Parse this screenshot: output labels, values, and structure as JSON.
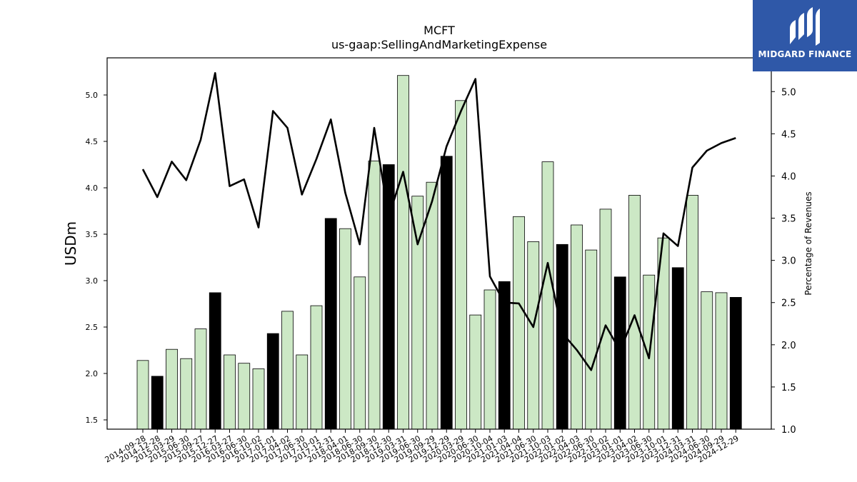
{
  "brand": {
    "name": "MIDGARD FINANCE",
    "logo_icon": "midgard-m-logo-icon",
    "bg_color": "#2f58a8"
  },
  "colors": {
    "bar_fill": "#cce8c5",
    "bar_highlight": "#000000",
    "line": "#000000"
  },
  "chart_data": {
    "type": "bar",
    "title": "MCFT",
    "subtitle": "us-gaap:SellingAndMarketingExpense",
    "ylabel": "USDm",
    "y2label": "Percentage of Revenues",
    "ylim": [
      1.4,
      5.4
    ],
    "y2lim": [
      1.0,
      5.4
    ],
    "yticks": [
      "1.5",
      "2.0",
      "2.5",
      "3.0",
      "3.5",
      "4.0",
      "4.5",
      "5.0"
    ],
    "y2ticks": [
      "1.0",
      "1.5",
      "2.0",
      "2.5",
      "3.0",
      "3.5",
      "4.0",
      "4.5",
      "5.0"
    ],
    "grid": false,
    "categories": [
      "2014-09-28",
      "2014-12-28",
      "2015-03-29",
      "2015-06-30",
      "2015-09-27",
      "2015-12-27",
      "2016-03-27",
      "2016-06-30",
      "2016-10-02",
      "2017-01-01",
      "2017-04-02",
      "2017-06-30",
      "2017-10-01",
      "2017-12-31",
      "2018-04-01",
      "2018-06-30",
      "2018-09-30",
      "2018-12-30",
      "2019-03-31",
      "2019-06-30",
      "2019-09-29",
      "2019-12-29",
      "2020-03-29",
      "2020-06-30",
      "2020-10-04",
      "2021-01-03",
      "2021-04-04",
      "2021-06-30",
      "2021-10-03",
      "2022-01-02",
      "2022-04-03",
      "2022-06-30",
      "2022-10-02",
      "2023-01-01",
      "2023-04-02",
      "2023-06-30",
      "2023-10-01",
      "2023-12-31",
      "2024-03-31",
      "2024-06-30",
      "2024-09-29",
      "2024-12-29"
    ],
    "series": [
      {
        "type": "bar",
        "values": [
          2.14,
          1.97,
          2.26,
          2.16,
          2.48,
          2.87,
          2.2,
          2.11,
          2.05,
          2.43,
          2.67,
          2.2,
          2.73,
          3.67,
          3.56,
          3.04,
          4.29,
          4.25,
          5.21,
          3.91,
          4.06,
          4.34,
          4.94,
          2.63,
          2.9,
          2.99,
          3.69,
          3.42,
          4.28,
          3.39,
          3.6,
          3.33,
          3.77,
          3.04,
          3.92,
          3.06,
          3.46,
          3.14,
          3.92,
          2.88,
          2.87,
          2.82
        ],
        "highlight": [
          false,
          true,
          false,
          false,
          false,
          true,
          false,
          false,
          false,
          true,
          false,
          false,
          false,
          true,
          false,
          false,
          false,
          true,
          false,
          false,
          false,
          true,
          false,
          false,
          false,
          true,
          false,
          false,
          false,
          true,
          false,
          false,
          false,
          true,
          false,
          false,
          false,
          true,
          false,
          false,
          false,
          true
        ]
      },
      {
        "type": "line",
        "axis": "right",
        "values": [
          4.08,
          3.75,
          4.17,
          3.95,
          4.43,
          5.22,
          3.88,
          3.96,
          3.39,
          4.77,
          4.57,
          3.78,
          4.2,
          4.67,
          3.8,
          3.19,
          4.57,
          3.52,
          4.05,
          3.19,
          3.7,
          4.35,
          4.77,
          5.15,
          2.81,
          2.5,
          2.49,
          2.21,
          2.97,
          2.14,
          1.94,
          1.7,
          2.23,
          1.93,
          2.35,
          1.84,
          3.32,
          3.17,
          4.1,
          4.3,
          4.39,
          4.45
        ]
      }
    ]
  }
}
